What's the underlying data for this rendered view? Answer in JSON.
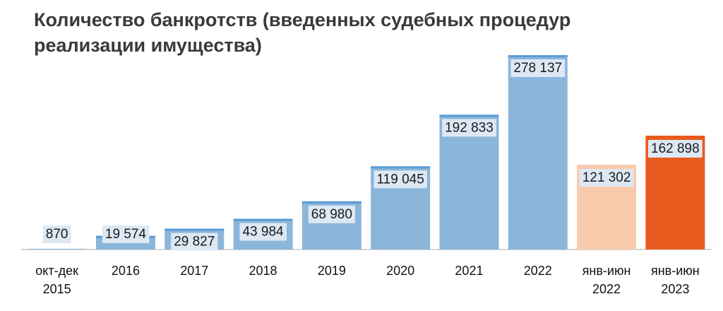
{
  "title_line1": "Количество банкротств (введенных судебных процедур",
  "title_line2": "реализации имущества)",
  "chart_data": {
    "type": "bar",
    "title": "Количество банкротств (введенных судебных процедур реализации имущества)",
    "categories": [
      [
        "окт-дек",
        "2015"
      ],
      [
        "2016"
      ],
      [
        "2017"
      ],
      [
        "2018"
      ],
      [
        "2019"
      ],
      [
        "2020"
      ],
      [
        "2021"
      ],
      [
        "2022"
      ],
      [
        "янв-июн",
        "2022"
      ],
      [
        "янв-июн",
        "2023"
      ]
    ],
    "values": [
      870,
      19574,
      29827,
      43984,
      68980,
      119045,
      192833,
      278137,
      121302,
      162898
    ],
    "value_labels": [
      "870",
      "19 574",
      "29 827",
      "43 984",
      "68 980",
      "119 045",
      "192 833",
      "278 137",
      "121 302",
      "162 898"
    ],
    "ylim": [
      0,
      278137
    ],
    "grid": false,
    "colors": {
      "bar": "#8bb6da",
      "bar_top": "#5b9bd5",
      "bar_2022h1": "#f8cbad",
      "bar_2023h1": "#e85a1e",
      "label_bg": "#dde8f5",
      "axis": "#c8c8c8"
    },
    "bar_colors": [
      "bar",
      "bar",
      "bar",
      "bar",
      "bar",
      "bar",
      "bar",
      "bar",
      "bar_2022h1",
      "bar_2023h1"
    ]
  }
}
